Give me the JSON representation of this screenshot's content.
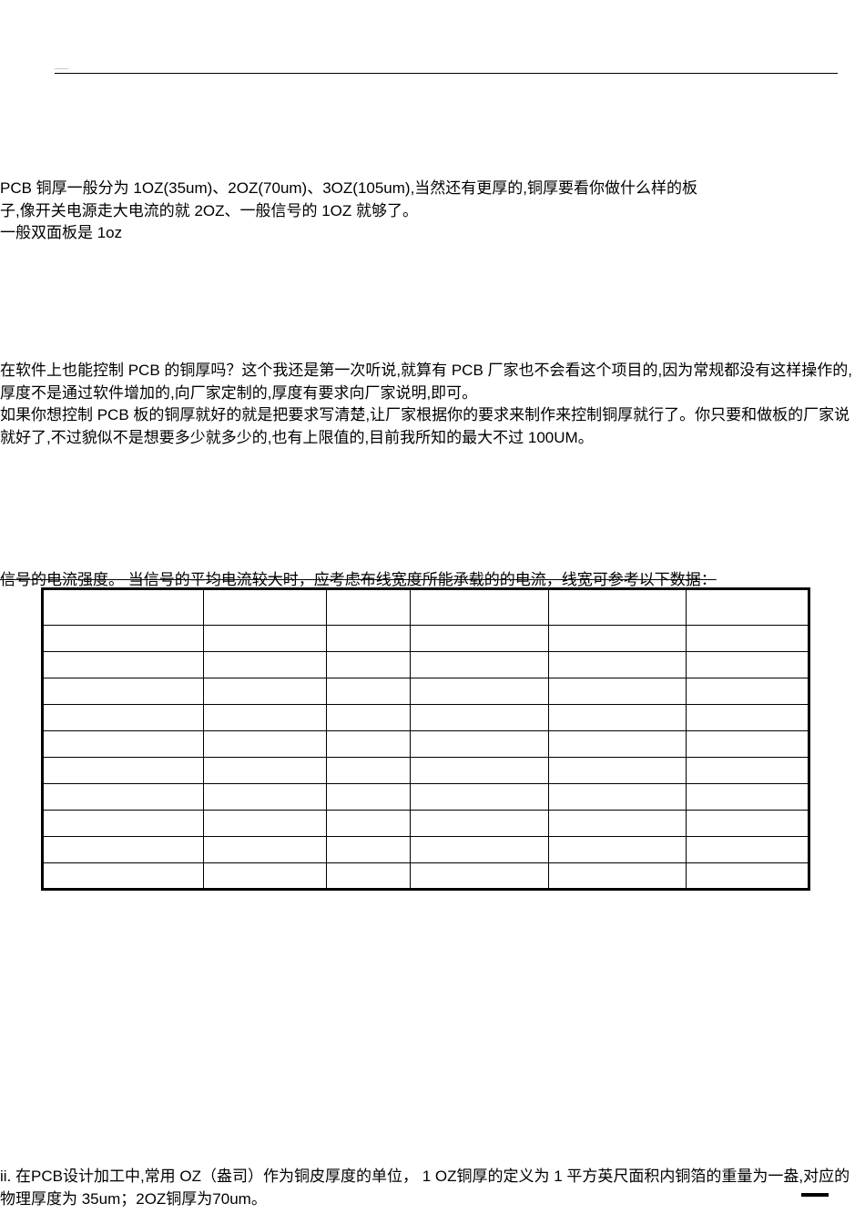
{
  "header": {
    "tiny_text": "........."
  },
  "para1": {
    "line1": "PCB 铜厚一般分为  1OZ(35um)、2OZ(70um)、3OZ(105um),当然还有更厚的,铜厚要看你做什么样的板",
    "line2": "子,像开关电源走大电流的就    2OZ、一般信号的  1OZ 就够了。",
    "line3": "一般双面板是  1oz"
  },
  "para2": {
    "line1": "在软件上也能控制  PCB 的铜厚吗？这个我还是第一次听说,就算有      PCB 厂家也不会看这个项目的,因为常规都没有这样操作的,厚度不是通过软件增加的,向厂家定制的,厚度有要求向厂家说明,即可。",
    "line2": "如果你想控制  PCB 板的铜厚就好的就是把要求写清楚,让厂家根据你的要求来制作来控制铜厚就行了。你只要和做板的厂家说就好了,不过貌似不是想要多少就多少的,也有上限值的,目前我所知的最大不过 100UM。"
  },
  "para3": {
    "text": "信号的电流强度。  当信号的平均电流较大时，应考虑布线宽度所能承载的的电流，线宽可参考以下数据："
  },
  "table": {
    "rows": 11,
    "cols": 6
  },
  "para4": {
    "line1": "ii.   在PCB设计加工中,常用 OZ（盎司）作为铜皮厚度的单位，  1  OZ铜厚的定义为 1  平方英尺面积内铜箔的重量为一盎,对应的物理厚度为    35um；2OZ铜厚为70um。"
  },
  "colors": {
    "text": "#000000",
    "background": "#ffffff",
    "border": "#000000"
  }
}
